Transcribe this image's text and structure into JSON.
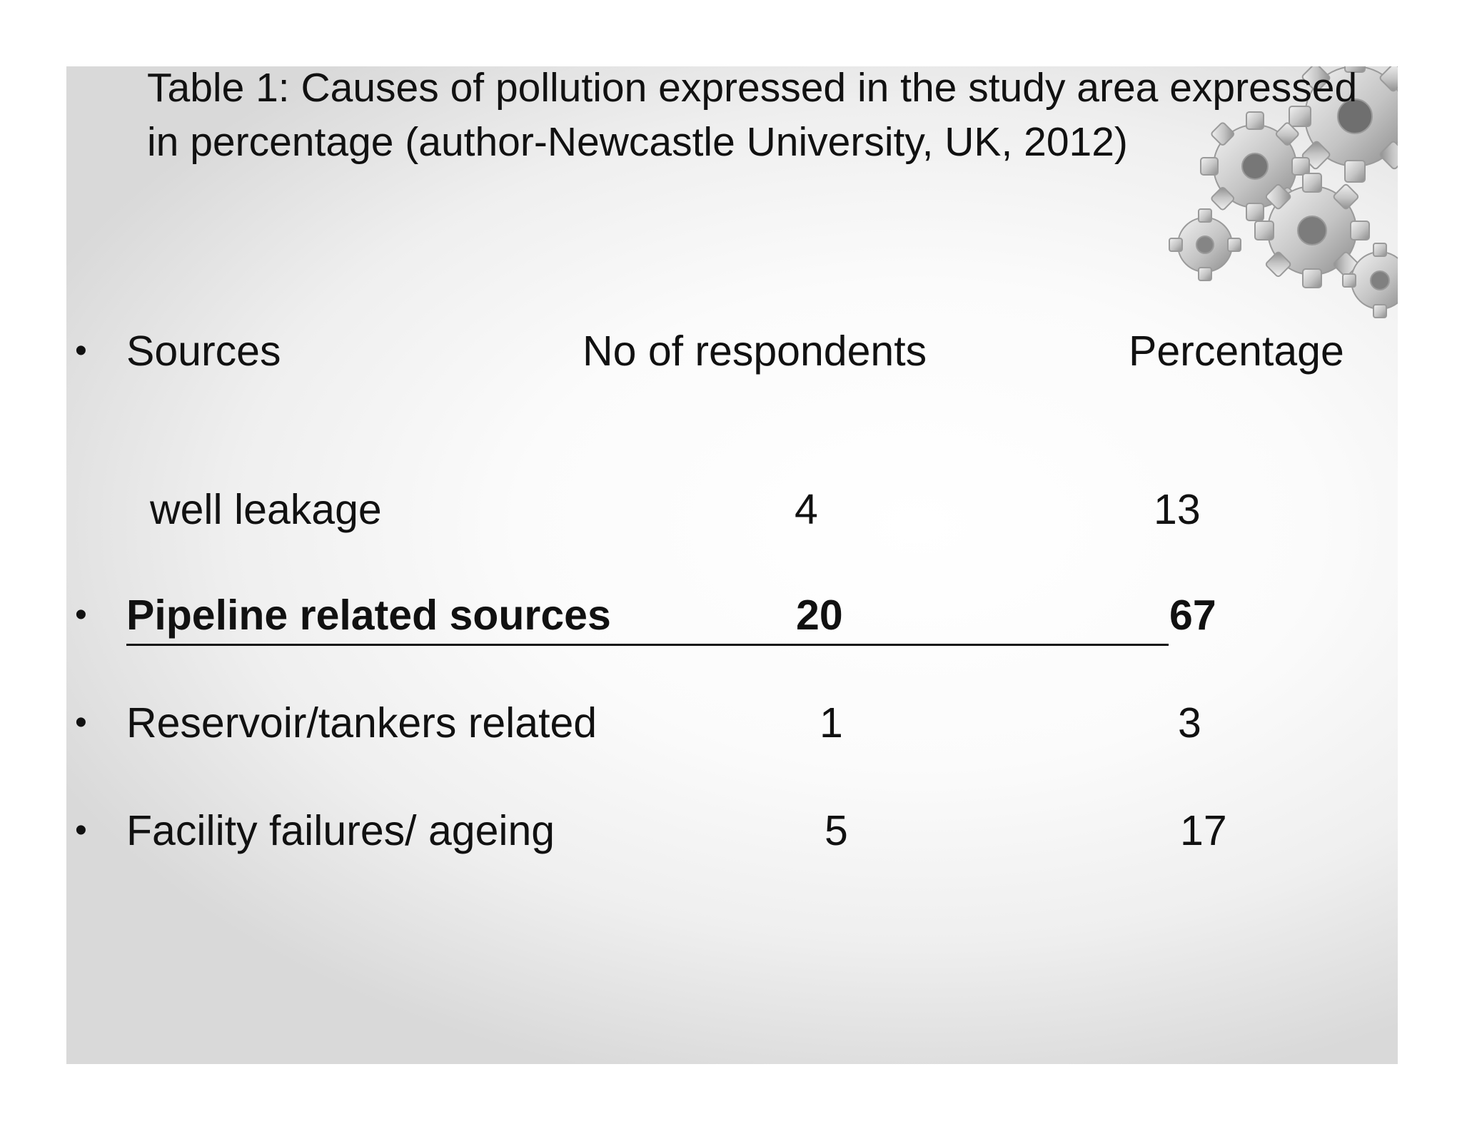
{
  "title": "Table 1: Causes of pollution expressed in the study area expressed in percentage (author-Newcastle University, UK, 2012)",
  "table": {
    "headers": {
      "source": "Sources",
      "respondents": "No of respondents",
      "percentage": "Percentage"
    },
    "rows": [
      {
        "source": "well leakage",
        "respondents": "4",
        "percentage": "13",
        "bulleted": false,
        "emphasis": false
      },
      {
        "source": "Pipeline related sources",
        "respondents": "20",
        "percentage": "67",
        "bulleted": true,
        "emphasis": true
      },
      {
        "source": "Reservoir/tankers related",
        "respondents": "1",
        "percentage": "3",
        "bulleted": true,
        "emphasis": false
      },
      {
        "source": "Facility failures/ ageing",
        "respondents": "5",
        "percentage": "17",
        "bulleted": true,
        "emphasis": false
      }
    ]
  },
  "bullet_glyph": "•",
  "decoration": {
    "gear_icon": "gear-cluster-icon",
    "gear_color": "#c8c8c8",
    "gear_shadow": "#8f8f8f"
  }
}
